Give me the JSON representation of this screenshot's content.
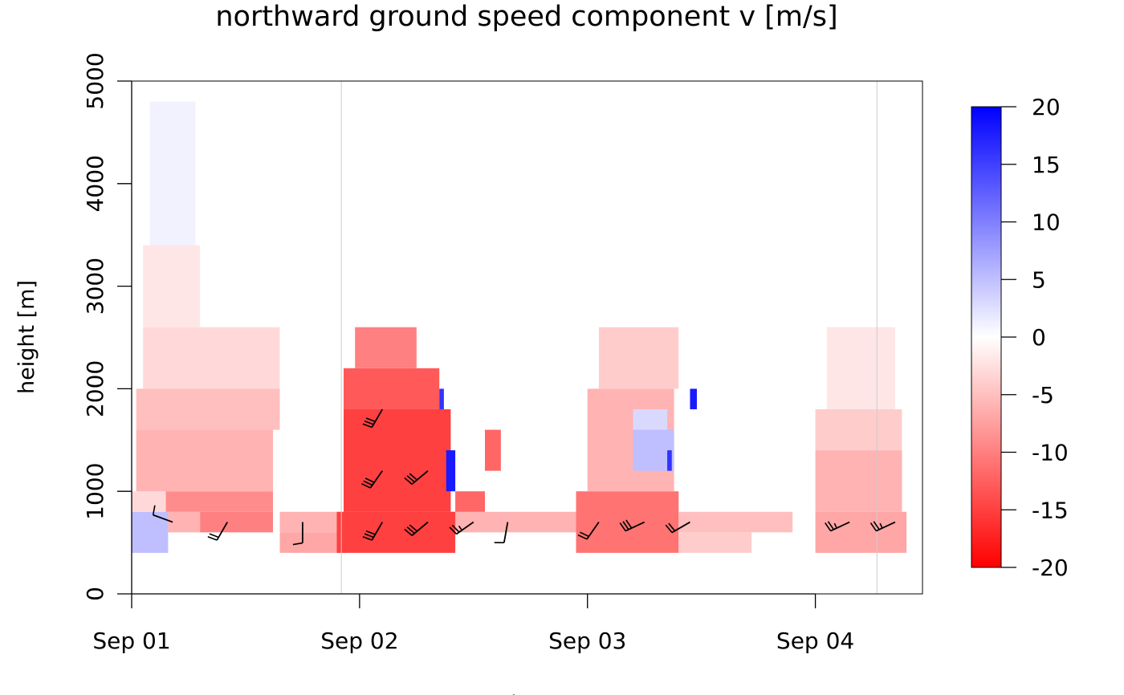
{
  "chart_data": {
    "type": "heatmap",
    "title": "northward ground speed component v [m/s]",
    "xlabel": "time",
    "ylabel": "height [m]",
    "x_ticks": [
      "Sep 01",
      "Sep 02",
      "Sep 03",
      "Sep 04"
    ],
    "xlim_days": [
      0,
      3.47
    ],
    "ylim": [
      0,
      5000
    ],
    "y_ticks": [
      0,
      1000,
      2000,
      3000,
      4000,
      5000
    ],
    "day_boundaries_days": [
      0.92,
      3.27
    ],
    "colorbar": {
      "min": -20,
      "max": 20,
      "ticks": [
        20,
        15,
        10,
        5,
        0,
        -5,
        -10,
        -15,
        -20
      ],
      "low_color": "#ff0000",
      "mid_color": "#ffffff",
      "high_color": "#0000ff"
    },
    "bin_height_m": 200,
    "cells": [
      {
        "t0": 0.0,
        "t1": 0.16,
        "h0": 400,
        "h1": 800,
        "v": 5
      },
      {
        "t0": 0.0,
        "t1": 0.16,
        "h0": 800,
        "h1": 1000,
        "v": -3
      },
      {
        "t0": 0.16,
        "t1": 0.3,
        "h0": 600,
        "h1": 800,
        "v": -6
      },
      {
        "t0": 0.15,
        "t1": 0.62,
        "h0": 800,
        "h1": 1000,
        "v": -9
      },
      {
        "t0": 0.3,
        "t1": 0.62,
        "h0": 600,
        "h1": 800,
        "v": -10
      },
      {
        "t0": 0.02,
        "t1": 0.62,
        "h0": 1000,
        "h1": 1600,
        "v": -6
      },
      {
        "t0": 0.02,
        "t1": 0.65,
        "h0": 1600,
        "h1": 2000,
        "v": -5
      },
      {
        "t0": 0.05,
        "t1": 0.65,
        "h0": 2000,
        "h1": 2600,
        "v": -3
      },
      {
        "t0": 0.05,
        "t1": 0.3,
        "h0": 2600,
        "h1": 3400,
        "v": -2
      },
      {
        "t0": 0.08,
        "t1": 0.28,
        "h0": 3400,
        "h1": 4800,
        "v": 1
      },
      {
        "t0": 0.65,
        "t1": 2.1,
        "h0": 600,
        "h1": 800,
        "v": -6
      },
      {
        "t0": 0.65,
        "t1": 0.95,
        "h0": 400,
        "h1": 600,
        "v": -7
      },
      {
        "t0": 0.9,
        "t1": 1.42,
        "h0": 400,
        "h1": 800,
        "v": -15
      },
      {
        "t0": 0.93,
        "t1": 1.4,
        "h0": 800,
        "h1": 1800,
        "v": -15
      },
      {
        "t0": 0.93,
        "t1": 1.35,
        "h0": 1800,
        "h1": 2200,
        "v": -13
      },
      {
        "t0": 0.98,
        "t1": 1.25,
        "h0": 2200,
        "h1": 2600,
        "v": -10
      },
      {
        "t0": 1.42,
        "t1": 1.55,
        "h0": 800,
        "h1": 1000,
        "v": -12
      },
      {
        "t0": 1.55,
        "t1": 1.62,
        "h0": 1200,
        "h1": 1600,
        "v": -12
      },
      {
        "t0": 1.38,
        "t1": 1.42,
        "h0": 1000,
        "h1": 1400,
        "v": 18
      },
      {
        "t0": 1.35,
        "t1": 1.37,
        "h0": 1800,
        "h1": 2000,
        "v": 16
      },
      {
        "t0": 1.95,
        "t1": 2.4,
        "h0": 400,
        "h1": 1000,
        "v": -11
      },
      {
        "t0": 2.0,
        "t1": 2.38,
        "h0": 1000,
        "h1": 2000,
        "v": -6
      },
      {
        "t0": 2.05,
        "t1": 2.4,
        "h0": 2000,
        "h1": 2600,
        "v": -4
      },
      {
        "t0": 2.2,
        "t1": 2.38,
        "h0": 1200,
        "h1": 1600,
        "v": 5
      },
      {
        "t0": 2.2,
        "t1": 2.35,
        "h0": 1600,
        "h1": 1800,
        "v": 3
      },
      {
        "t0": 2.4,
        "t1": 2.9,
        "h0": 600,
        "h1": 800,
        "v": -5
      },
      {
        "t0": 2.4,
        "t1": 2.72,
        "h0": 400,
        "h1": 600,
        "v": -4
      },
      {
        "t0": 2.45,
        "t1": 2.48,
        "h0": 1800,
        "h1": 2000,
        "v": 18
      },
      {
        "t0": 2.35,
        "t1": 2.37,
        "h0": 1200,
        "h1": 1400,
        "v": 16
      },
      {
        "t0": 3.0,
        "t1": 3.4,
        "h0": 400,
        "h1": 800,
        "v": -7
      },
      {
        "t0": 3.0,
        "t1": 3.38,
        "h0": 800,
        "h1": 1400,
        "v": -6
      },
      {
        "t0": 3.0,
        "t1": 3.38,
        "h0": 1400,
        "h1": 1800,
        "v": -4
      },
      {
        "t0": 3.05,
        "t1": 3.35,
        "h0": 1800,
        "h1": 2600,
        "v": -2
      }
    ],
    "wind_barbs": [
      {
        "t": 0.18,
        "h": 700,
        "dir_deg": 290,
        "speed": 10
      },
      {
        "t": 0.42,
        "h": 700,
        "dir_deg": 210,
        "speed": 20
      },
      {
        "t": 0.75,
        "h": 700,
        "dir_deg": 180,
        "speed": 10
      },
      {
        "t": 1.1,
        "h": 700,
        "dir_deg": 210,
        "speed": 30
      },
      {
        "t": 1.3,
        "h": 700,
        "dir_deg": 230,
        "speed": 30
      },
      {
        "t": 1.5,
        "h": 700,
        "dir_deg": 235,
        "speed": 25
      },
      {
        "t": 1.65,
        "h": 700,
        "dir_deg": 190,
        "speed": 10
      },
      {
        "t": 2.05,
        "h": 700,
        "dir_deg": 215,
        "speed": 20
      },
      {
        "t": 2.25,
        "h": 700,
        "dir_deg": 245,
        "speed": 30
      },
      {
        "t": 2.45,
        "h": 700,
        "dir_deg": 240,
        "speed": 20
      },
      {
        "t": 3.15,
        "h": 700,
        "dir_deg": 245,
        "speed": 25
      },
      {
        "t": 3.35,
        "h": 700,
        "dir_deg": 245,
        "speed": 25
      },
      {
        "t": 1.1,
        "h": 1200,
        "dir_deg": 215,
        "speed": 30
      },
      {
        "t": 1.3,
        "h": 1200,
        "dir_deg": 230,
        "speed": 30
      },
      {
        "t": 1.1,
        "h": 1800,
        "dir_deg": 210,
        "speed": 30
      }
    ]
  }
}
